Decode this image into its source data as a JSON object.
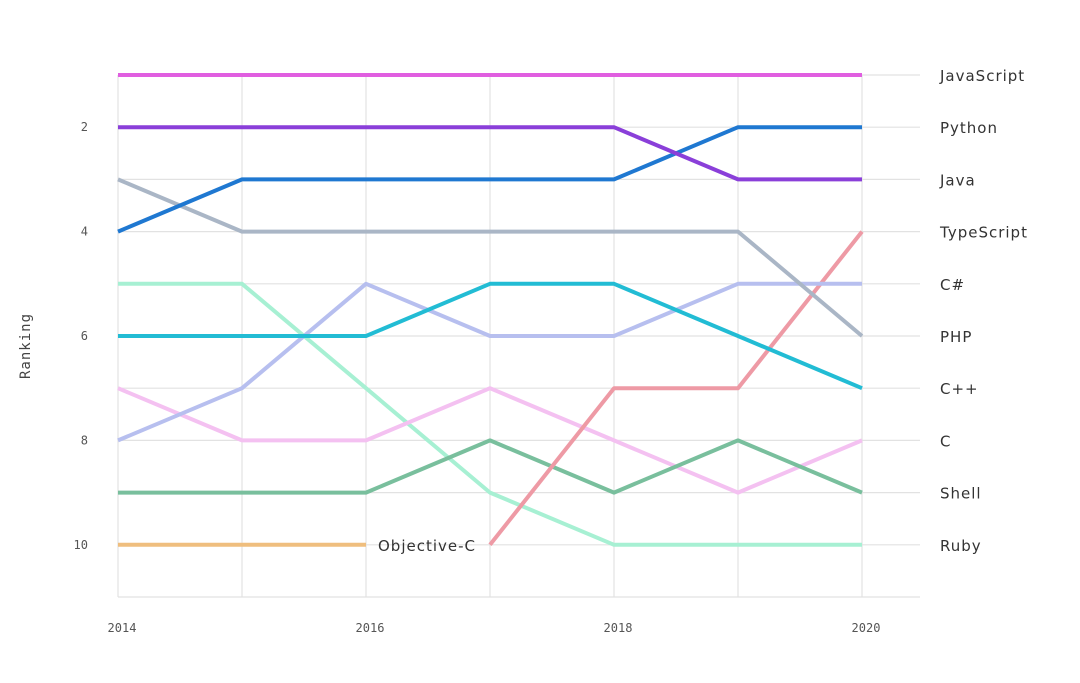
{
  "chart_data": {
    "type": "line",
    "title": "",
    "xlabel": "",
    "ylabel": "Ranking",
    "x": [
      2014,
      2015,
      2016,
      2017,
      2018,
      2019,
      2020
    ],
    "xlim": [
      2014,
      2020.5
    ],
    "ylim": [
      11,
      1
    ],
    "y_inverted": true,
    "grid": true,
    "legend": "right-end-labels",
    "x_ticks": [
      2014,
      2016,
      2018,
      2020
    ],
    "x_tick_labels": [
      "2014",
      "2016",
      "2018",
      "2020"
    ],
    "y_ticks": [
      2,
      4,
      6,
      8,
      10
    ],
    "y_tick_labels": [
      "2",
      "4",
      "6",
      "8",
      "10"
    ],
    "series": [
      {
        "name": "JavaScript",
        "color": "#e05ee0",
        "values": [
          1,
          1,
          1,
          1,
          1,
          1,
          1
        ]
      },
      {
        "name": "Python",
        "color": "#1f78d1",
        "values": [
          4,
          3,
          3,
          3,
          3,
          2,
          2
        ]
      },
      {
        "name": "Java",
        "color": "#8a3fd9",
        "values": [
          2,
          2,
          2,
          2,
          2,
          3,
          3
        ]
      },
      {
        "name": "TypeScript",
        "color": "#ee9aa5",
        "values": [
          null,
          null,
          null,
          10,
          7,
          7,
          4
        ]
      },
      {
        "name": "C#",
        "color": "#b7bfef",
        "values": [
          8,
          7,
          5,
          6,
          6,
          5,
          5
        ]
      },
      {
        "name": "PHP",
        "color": "#aab6c6",
        "values": [
          3,
          4,
          4,
          4,
          4,
          4,
          6
        ]
      },
      {
        "name": "C++",
        "color": "#22bcd4",
        "values": [
          6,
          6,
          6,
          5,
          5,
          6,
          7
        ]
      },
      {
        "name": "C",
        "color": "#f4c1f1",
        "values": [
          7,
          8,
          8,
          7,
          8,
          9,
          8
        ]
      },
      {
        "name": "Shell",
        "color": "#79bf9d",
        "values": [
          9,
          9,
          9,
          8,
          9,
          8,
          9
        ]
      },
      {
        "name": "Ruby",
        "color": "#a7f0d3",
        "values": [
          5,
          5,
          7,
          9,
          10,
          10,
          10
        ]
      },
      {
        "name": "Objective-C",
        "color": "#efbe7e",
        "values": [
          10,
          10,
          10,
          null,
          null,
          null,
          null
        ]
      }
    ],
    "end_labels": [
      "JavaScript",
      "Python",
      "Java",
      "TypeScript",
      "C#",
      "PHP",
      "C++",
      "C",
      "Shell",
      "Ruby"
    ],
    "inline_label": {
      "text": "Objective-C",
      "series": "Objective-C"
    }
  }
}
